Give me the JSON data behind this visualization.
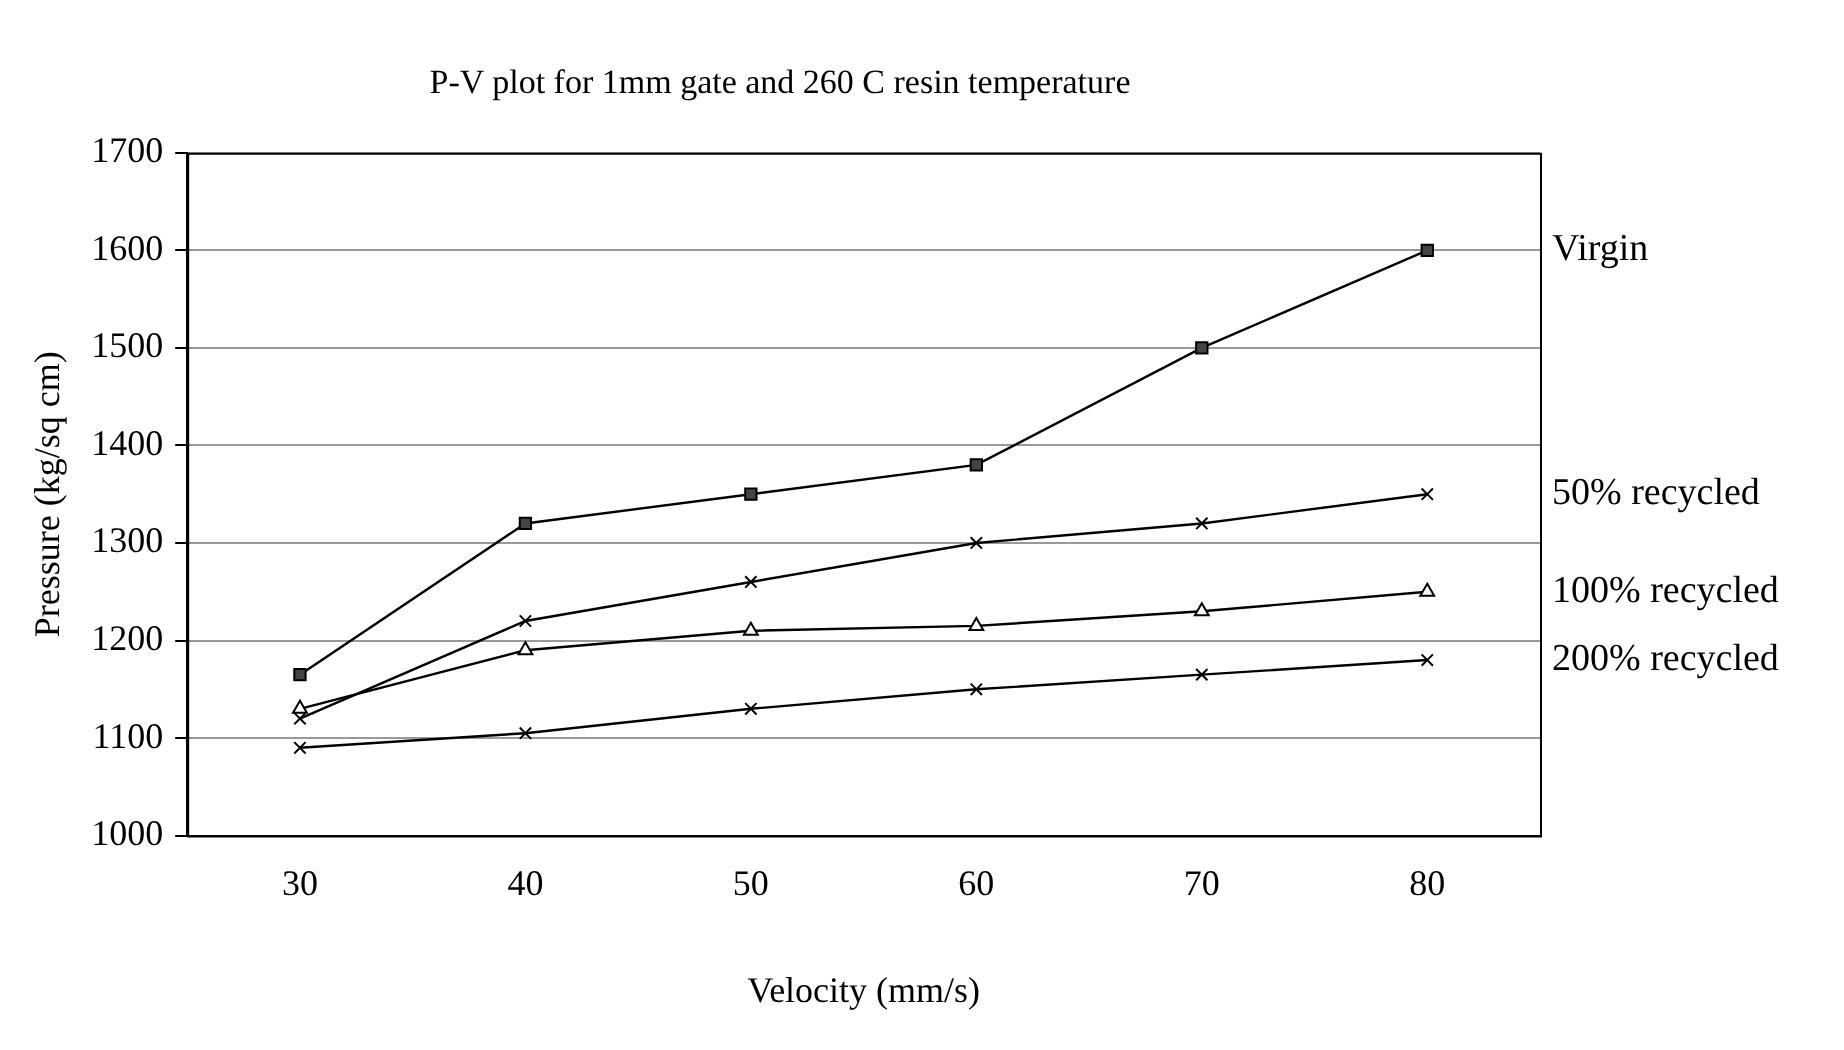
{
  "chart_data": {
    "type": "line",
    "title": "P-V plot for 1mm gate and 260 C resin temperature",
    "xlabel": "Velocity (mm/s)",
    "ylabel": "Pressure (kg/sq cm)",
    "categories": [
      "30",
      "40",
      "50",
      "60",
      "70",
      "80"
    ],
    "ylim": [
      1000,
      1700
    ],
    "yticks": [
      1000,
      1100,
      1200,
      1300,
      1400,
      1500,
      1600,
      1700
    ],
    "grid": "y",
    "legend": false,
    "series": [
      {
        "name": "Virgin",
        "color": "#000000",
        "marker": "square",
        "values": [
          1165,
          1320,
          1350,
          1380,
          1500,
          1600
        ]
      },
      {
        "name": "50% recycled",
        "color": "#000000",
        "marker": "cross",
        "values": [
          1120,
          1220,
          1260,
          1300,
          1320,
          1350
        ]
      },
      {
        "name": "100% recycled",
        "color": "#000000",
        "marker": "triangle",
        "values": [
          1130,
          1190,
          1210,
          1215,
          1230,
          1250
        ]
      },
      {
        "name": "200% recycled",
        "color": "#000000",
        "marker": "cross",
        "values": [
          1090,
          1105,
          1130,
          1150,
          1165,
          1180
        ]
      }
    ]
  }
}
